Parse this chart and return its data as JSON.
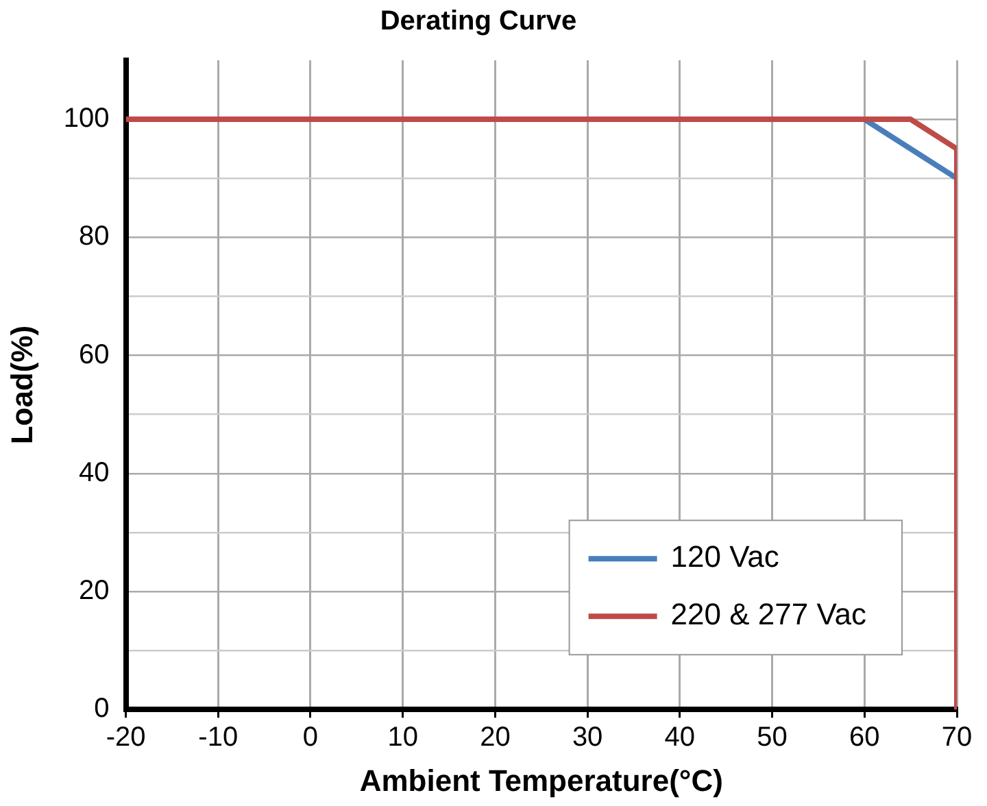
{
  "chart_data": {
    "type": "line",
    "title": "Derating Curve",
    "xlabel": "Ambient Temperature(°C)",
    "ylabel": "Load(%)",
    "xlim": [
      -20,
      70
    ],
    "xticks": [
      -20,
      -10,
      0,
      10,
      20,
      30,
      40,
      50,
      60,
      70
    ],
    "ylim": [
      0,
      110
    ],
    "yticks": [
      0,
      {
        "value": 10,
        "label": null
      },
      20,
      {
        "value": 30,
        "label": null
      },
      40,
      {
        "value": 50,
        "label": null
      },
      60,
      {
        "value": 70,
        "label": null
      },
      80,
      {
        "value": 90,
        "label": null
      },
      100
    ],
    "grid": true,
    "legend": "bottom right",
    "marker": "none",
    "line_style": "solid",
    "series": [
      {
        "name": "120 Vac",
        "color": "#4a7ebb",
        "x": [
          60,
          70
        ],
        "values": [
          100,
          90
        ]
      },
      {
        "name": "220 & 277 Vac",
        "color": "#be4b48",
        "x": [
          -20,
          65,
          70,
          70
        ],
        "values": [
          100,
          100,
          95,
          0
        ]
      }
    ]
  }
}
